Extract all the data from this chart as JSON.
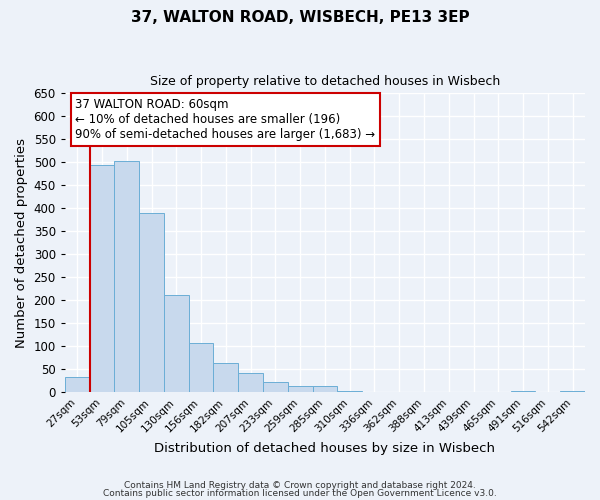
{
  "title": "37, WALTON ROAD, WISBECH, PE13 3EP",
  "subtitle": "Size of property relative to detached houses in Wisbech",
  "xlabel": "Distribution of detached houses by size in Wisbech",
  "ylabel": "Number of detached properties",
  "bar_labels": [
    "27sqm",
    "53sqm",
    "79sqm",
    "105sqm",
    "130sqm",
    "156sqm",
    "182sqm",
    "207sqm",
    "233sqm",
    "259sqm",
    "285sqm",
    "310sqm",
    "336sqm",
    "362sqm",
    "388sqm",
    "413sqm",
    "439sqm",
    "465sqm",
    "491sqm",
    "516sqm",
    "542sqm"
  ],
  "bar_heights": [
    33,
    493,
    503,
    390,
    210,
    107,
    62,
    41,
    22,
    14,
    12,
    1,
    0,
    0,
    0,
    0,
    0,
    0,
    1,
    0,
    1
  ],
  "bar_color": "#c8d9ed",
  "bar_edge_color": "#6baed6",
  "vline_color": "#cc0000",
  "ylim": [
    0,
    650
  ],
  "yticks": [
    0,
    50,
    100,
    150,
    200,
    250,
    300,
    350,
    400,
    450,
    500,
    550,
    600,
    650
  ],
  "annotation_line1": "37 WALTON ROAD: 60sqm",
  "annotation_line2": "← 10% of detached houses are smaller (196)",
  "annotation_line3": "90% of semi-detached houses are larger (1,683) →",
  "annotation_box_color": "#ffffff",
  "annotation_box_edge": "#cc0000",
  "footer1": "Contains HM Land Registry data © Crown copyright and database right 2024.",
  "footer2": "Contains public sector information licensed under the Open Government Licence v3.0.",
  "background_color": "#edf2f9",
  "plot_bg_color": "#edf2f9",
  "grid_color": "#ffffff"
}
